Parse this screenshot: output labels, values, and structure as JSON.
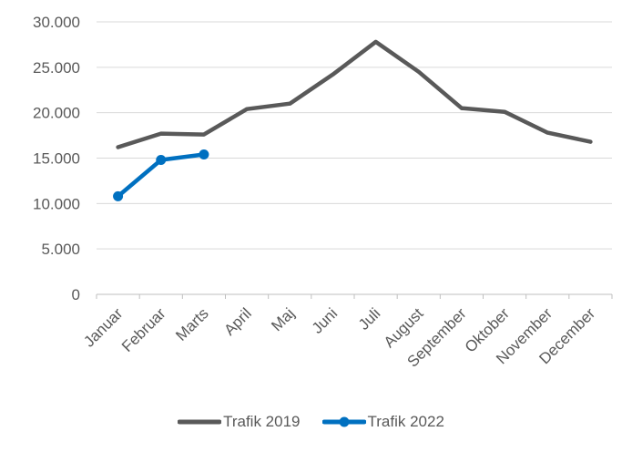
{
  "chart_data": {
    "type": "line",
    "title": "",
    "xlabel": "",
    "ylabel": "",
    "categories": [
      "Januar",
      "Februar",
      "Marts",
      "April",
      "Maj",
      "Juni",
      "Juli",
      "August",
      "September",
      "Oktober",
      "November",
      "December"
    ],
    "series": [
      {
        "name": "Trafik 2019",
        "color": "#595959",
        "marker": false,
        "values": [
          16200,
          17700,
          17600,
          20400,
          21000,
          24200,
          27800,
          24500,
          20500,
          20100,
          17800,
          16800
        ]
      },
      {
        "name": "Trafik 2022",
        "color": "#0070C0",
        "marker": true,
        "values": [
          10800,
          14800,
          15400,
          null,
          null,
          null,
          null,
          null,
          null,
          null,
          null,
          null
        ]
      }
    ],
    "ylim": [
      0,
      30000
    ],
    "yticks": [
      {
        "value": 0,
        "label": "0"
      },
      {
        "value": 5000,
        "label": "5.000"
      },
      {
        "value": 10000,
        "label": "10.000"
      },
      {
        "value": 15000,
        "label": "15.000"
      },
      {
        "value": 20000,
        "label": "20.000"
      },
      {
        "value": 25000,
        "label": "25.000"
      },
      {
        "value": 30000,
        "label": "30.000"
      }
    ],
    "grid": true,
    "legend_position": "bottom",
    "colors": {
      "gridline": "#D9D9D9",
      "axis": "#BFBFBF",
      "tick_text": "#595959"
    }
  }
}
